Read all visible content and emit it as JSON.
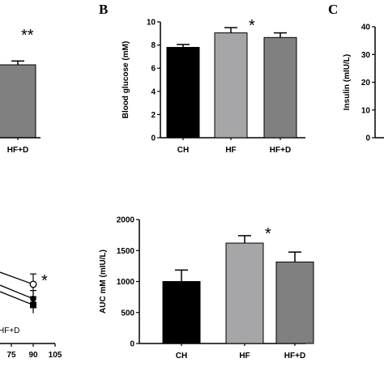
{
  "panel_letters": {
    "b": "B",
    "c": "C"
  },
  "colors": {
    "CH": "#000000",
    "HF": "#a6a6a8",
    "HF+D": "#808080",
    "bar_edge": "#000000"
  },
  "chart_data": [
    {
      "id": "panel-a-bar-partial",
      "type": "bar",
      "categories": [
        "HF+D"
      ],
      "values": [
        7.7
      ],
      "error": [
        0.4
      ],
      "annotation": "**",
      "xlabel": "",
      "ylabel": "",
      "title": ""
    },
    {
      "id": "panel-b-blood-glucose",
      "panel": "B",
      "type": "bar",
      "categories": [
        "CH",
        "HF",
        "HF+D"
      ],
      "values": [
        7.8,
        9.05,
        8.65
      ],
      "error": [
        0.25,
        0.45,
        0.4
      ],
      "annotations": {
        "HF": "*"
      },
      "ylabel": "Blood glucose (mM)",
      "ylim": [
        0,
        10
      ],
      "yticks": [
        0,
        2,
        4,
        6,
        8,
        10
      ],
      "grid": false
    },
    {
      "id": "panel-c-insulin-partial",
      "panel": "C",
      "type": "bar",
      "categories": [],
      "values": [],
      "ylabel": "Insulin (mIU/L)",
      "ylim": [
        0,
        40
      ],
      "yticks": [
        0,
        10,
        20,
        30,
        40
      ]
    },
    {
      "id": "panel-d-line-partial",
      "type": "line",
      "x": [
        90
      ],
      "series": [
        {
          "values": [
            31
          ],
          "error": [
            5
          ],
          "marker": "open-circle"
        },
        {
          "values": [
            24
          ],
          "error": [
            4
          ],
          "marker": "filled-circle"
        },
        {
          "values": [
            21
          ],
          "error": [
            4
          ],
          "marker": "filled-square"
        }
      ],
      "annotation": "*",
      "xticks": [
        75,
        90,
        105
      ],
      "legend_text": "HF+D"
    },
    {
      "id": "panel-auc",
      "type": "bar",
      "categories": [
        "CH",
        "HF",
        "HF+D"
      ],
      "values": [
        1000,
        1620,
        1315
      ],
      "error": [
        185,
        120,
        160
      ],
      "annotations": {
        "HF": "*"
      },
      "ylabel": "AUC mM (mIU/L)",
      "ylim": [
        0,
        2000
      ],
      "yticks": [
        0,
        500,
        1000,
        1500,
        2000
      ],
      "grid": false
    }
  ]
}
